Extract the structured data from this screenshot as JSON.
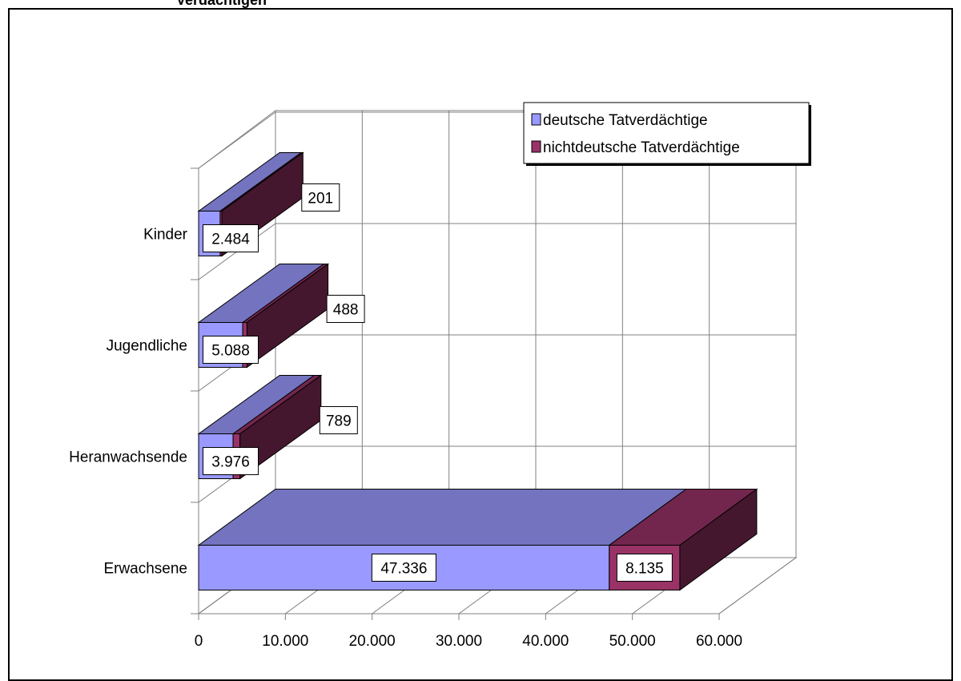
{
  "chart_data": {
    "type": "bar",
    "orientation": "horizontal",
    "stacked": true,
    "three_d": true,
    "title": "Verdächtigen",
    "categories": [
      "Kinder",
      "Jugendliche",
      "Heranwachsende",
      "Erwachsene"
    ],
    "series": [
      {
        "name": "deutsche Tatverdächtige",
        "values": [
          2484,
          5088,
          3976,
          47336
        ],
        "labels": [
          "2.484",
          "5.088",
          "3.976",
          "47.336"
        ],
        "color": "#9999ff"
      },
      {
        "name": "nichtdeutsche Tatverdächtige",
        "values": [
          201,
          488,
          789,
          8135
        ],
        "labels": [
          "201",
          "488",
          "789",
          "8.135"
        ],
        "color": "#993366"
      }
    ],
    "xlim": [
      0,
      60000
    ],
    "xticks": [
      0,
      10000,
      20000,
      30000,
      40000,
      50000,
      60000
    ],
    "xtick_labels": [
      "0",
      "10.000",
      "20.000",
      "30.000",
      "40.000",
      "50.000",
      "60.000"
    ],
    "grid": true,
    "legend_position": "top-right"
  }
}
